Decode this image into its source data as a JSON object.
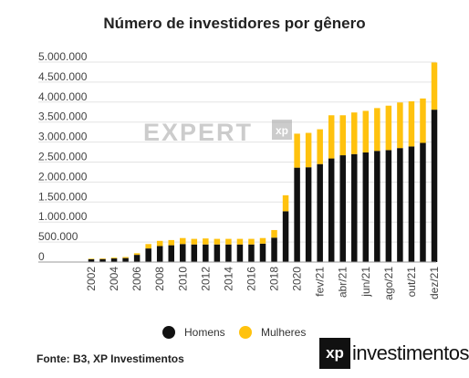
{
  "chart_data": {
    "type": "bar",
    "stacked": true,
    "title": "Número de investidores por gênero",
    "categories": [
      "2002",
      "2003",
      "2004",
      "2005",
      "2006",
      "2007",
      "2008",
      "2009",
      "2010",
      "2011",
      "2012",
      "2013",
      "2014",
      "2015",
      "2016",
      "2017",
      "2018",
      "2019",
      "2020",
      "jan/21",
      "fev/21",
      "mar/21",
      "abr/21",
      "mai/21",
      "jun/21",
      "jul/21",
      "ago/21",
      "set/21",
      "out/21",
      "nov/21",
      "dez/21"
    ],
    "tick_labels": [
      "2002",
      "",
      "2004",
      "",
      "2006",
      "",
      "2008",
      "",
      "2010",
      "",
      "2012",
      "",
      "2014",
      "",
      "2016",
      "",
      "2018",
      "",
      "2020",
      "",
      "fev/21",
      "",
      "abr/21",
      "",
      "jun/21",
      "",
      "ago/21",
      "",
      "out/21",
      "",
      "dez/21"
    ],
    "series": [
      {
        "name": "Homens",
        "color": "#111111",
        "values": [
          70000,
          75000,
          90000,
          100000,
          180000,
          340000,
          400000,
          420000,
          450000,
          440000,
          440000,
          440000,
          440000,
          440000,
          440000,
          460000,
          610000,
          1270000,
          2360000,
          2370000,
          2450000,
          2590000,
          2670000,
          2700000,
          2740000,
          2780000,
          2800000,
          2850000,
          2890000,
          2980000,
          3810000
        ]
      },
      {
        "name": "Mulheres",
        "color": "#FFC20E",
        "values": [
          15000,
          15000,
          20000,
          25000,
          40000,
          110000,
          130000,
          130000,
          150000,
          140000,
          150000,
          140000,
          140000,
          140000,
          140000,
          140000,
          190000,
          400000,
          850000,
          860000,
          870000,
          1080000,
          1000000,
          1040000,
          1040000,
          1070000,
          1110000,
          1140000,
          1130000,
          1110000,
          1180000
        ]
      }
    ],
    "y_ticks": [
      "5.000.000",
      "4.500.000",
      "4.000.000",
      "3.500.000",
      "3.000.000",
      "2.500.000",
      "2.000.000",
      "1.500.000",
      "1.000.000",
      "500.000",
      "0"
    ],
    "ylim": [
      0,
      5000000
    ],
    "grid": true,
    "legend_position": "bottom"
  },
  "watermark": "EXPERT",
  "watermark_badge": "xp",
  "legend": [
    {
      "label": "Homens",
      "color": "#111111"
    },
    {
      "label": "Mulheres",
      "color": "#FFC20E"
    }
  ],
  "source": "Fonte: B3, XP Investimentos",
  "logo": {
    "mark": "xp",
    "text": "investimentos"
  }
}
